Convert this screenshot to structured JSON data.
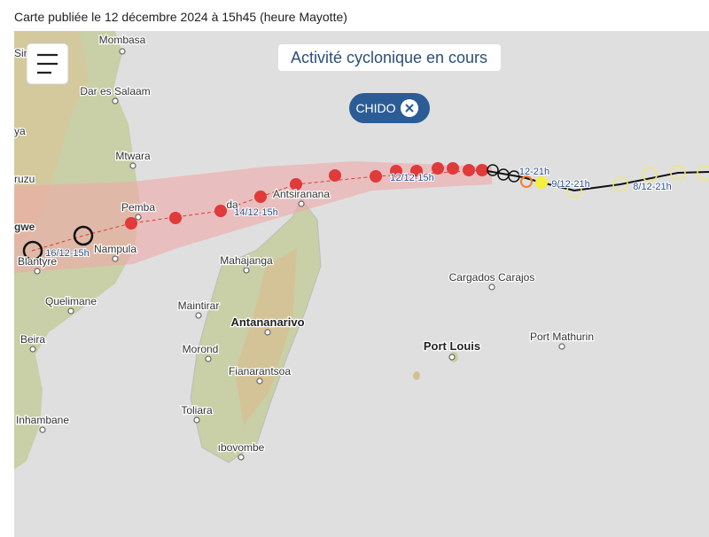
{
  "header": {
    "caption": "Carte publiée le 12 décembre 2024 à 15h45 (heure Mayotte)"
  },
  "map": {
    "title": "Activité cyclonique en cours",
    "storm_chip": "CHIDO",
    "places": [
      "Mombasa",
      "Sir",
      "Dar es Salaam",
      "ya",
      "Mtwara",
      "ruzu",
      "Pemba",
      "gwe",
      "Nampula",
      "Blantyre",
      "Quelimane",
      "Beira",
      "Inhambane",
      "Antsiranana",
      "da",
      "Mahajanga",
      "Maintirar",
      "Antananarivo",
      "Morond",
      "Fianarantsoa",
      "Toliara",
      "ıbovombe",
      "Cargados Carajos",
      "Port Louis",
      "Port Mathurin"
    ],
    "track_labels": [
      "16/12-15h",
      "14/12-15h",
      "12/12-15h",
      "12-21h",
      "9/12-21h",
      "8/12-21h"
    ]
  }
}
